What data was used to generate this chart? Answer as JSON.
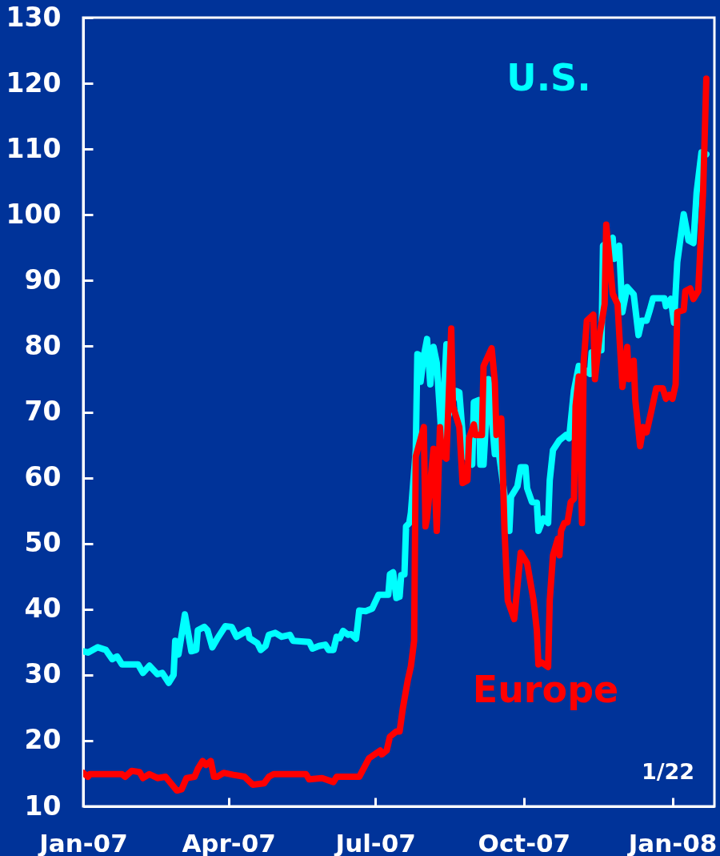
{
  "chart_data": {
    "type": "line",
    "annotations": [
      "1/22"
    ],
    "xlim": [
      "2007-01-01",
      "2008-01-27"
    ],
    "ylim": [
      10,
      130
    ],
    "xticks": [
      {
        "value": "2007-01-01",
        "label": "Jan-07"
      },
      {
        "value": "2007-04-01",
        "label": "Apr-07"
      },
      {
        "value": "2007-07-01",
        "label": "Jul-07"
      },
      {
        "value": "2007-10-01",
        "label": "Oct-07"
      },
      {
        "value": "2008-01-01",
        "label": "Jan-08"
      }
    ],
    "yticks": [
      10,
      20,
      30,
      40,
      50,
      60,
      70,
      80,
      90,
      100,
      110,
      120,
      130
    ],
    "series": [
      {
        "name": "U.S.",
        "color": "#00ffff",
        "x": [
          "2007-01-01",
          "2007-01-04",
          "2007-01-10",
          "2007-01-15",
          "2007-01-19",
          "2007-01-22",
          "2007-01-25",
          "2007-02-04",
          "2007-02-07",
          "2007-02-11",
          "2007-02-16",
          "2007-02-19",
          "2007-02-23",
          "2007-02-26",
          "2007-02-27",
          "2007-03-01",
          "2007-03-05",
          "2007-03-09",
          "2007-03-12",
          "2007-03-13",
          "2007-03-17",
          "2007-03-19",
          "2007-03-22",
          "2007-03-25",
          "2007-03-30",
          "2007-04-03",
          "2007-04-06",
          "2007-04-13",
          "2007-04-14",
          "2007-04-19",
          "2007-04-21",
          "2007-04-24",
          "2007-04-26",
          "2007-04-30",
          "2007-05-04",
          "2007-05-09",
          "2007-05-11",
          "2007-05-21",
          "2007-05-23",
          "2007-05-27",
          "2007-05-31",
          "2007-06-02",
          "2007-06-05",
          "2007-06-07",
          "2007-06-09",
          "2007-06-11",
          "2007-06-14",
          "2007-06-16",
          "2007-06-19",
          "2007-06-20",
          "2007-06-21",
          "2007-06-25",
          "2007-06-29",
          "2007-07-03",
          "2007-07-09",
          "2007-07-10",
          "2007-07-12",
          "2007-07-14",
          "2007-07-16",
          "2007-07-17",
          "2007-07-19",
          "2007-07-20",
          "2007-07-22",
          "2007-07-23",
          "2007-07-26",
          "2007-07-27",
          "2007-07-28",
          "2007-07-29",
          "2007-07-31",
          "2007-08-02",
          "2007-08-04",
          "2007-08-06",
          "2007-08-08",
          "2007-08-11",
          "2007-08-14",
          "2007-08-15",
          "2007-08-20",
          "2007-08-22",
          "2007-08-25",
          "2007-08-30",
          "2007-08-31",
          "2007-09-03",
          "2007-09-04",
          "2007-09-06",
          "2007-09-09",
          "2007-09-13",
          "2007-09-14",
          "2007-09-22",
          "2007-09-23",
          "2007-09-27",
          "2007-09-29",
          "2007-10-02",
          "2007-10-03",
          "2007-10-06",
          "2007-10-09",
          "2007-10-10",
          "2007-10-13",
          "2007-10-16",
          "2007-10-17",
          "2007-10-19",
          "2007-10-23",
          "2007-10-27",
          "2007-10-29",
          "2007-10-30",
          "2007-11-01",
          "2007-11-04",
          "2007-11-11",
          "2007-11-12",
          "2007-11-18",
          "2007-11-19",
          "2007-11-25",
          "2007-11-26",
          "2007-11-29",
          "2007-12-01",
          "2007-12-04",
          "2007-12-08",
          "2007-12-11",
          "2007-12-13",
          "2007-12-16",
          "2007-12-18",
          "2007-12-20",
          "2007-12-27",
          "2007-12-28",
          "2007-12-31",
          "2008-01-02",
          "2008-01-04",
          "2008-01-08",
          "2008-01-11",
          "2008-01-14",
          "2008-01-16",
          "2008-01-19",
          "2008-01-22"
        ],
        "values": [
          33.6,
          33.4,
          34.2,
          33.8,
          32.4,
          32.8,
          31.6,
          31.6,
          30.3,
          31.4,
          30.1,
          30.3,
          28.8,
          30.0,
          35.2,
          33.1,
          39.2,
          33.6,
          33.8,
          36.8,
          37.3,
          36.8,
          34.2,
          35.5,
          37.4,
          37.3,
          35.8,
          36.8,
          35.6,
          34.8,
          33.8,
          34.4,
          36.1,
          36.4,
          35.8,
          36.1,
          35.2,
          35.0,
          34.0,
          34.4,
          34.6,
          33.8,
          33.8,
          35.8,
          35.6,
          36.7,
          36.1,
          36.2,
          35.5,
          37.6,
          39.8,
          39.7,
          40.1,
          42.2,
          42.2,
          45.3,
          45.6,
          41.7,
          41.9,
          45.2,
          45.3,
          52.6,
          53.1,
          54.7,
          64.1,
          78.8,
          78.7,
          74.6,
          78.5,
          81.1,
          74.2,
          79.9,
          77.5,
          66.0,
          80.3,
          69.3,
          73.2,
          73.0,
          63.6,
          62.0,
          71.5,
          71.8,
          62.0,
          62.0,
          75.0,
          63.6,
          66.5,
          51.9,
          57.1,
          58.7,
          61.6,
          61.6,
          58.4,
          56.3,
          56.2,
          51.9,
          53.8,
          53.1,
          59.6,
          64.2,
          65.7,
          66.5,
          66.0,
          68.5,
          73.3,
          77.0,
          75.8,
          79.1,
          79.4,
          95.3,
          96.5,
          93.3,
          95.3,
          85.2,
          89.0,
          87.9,
          81.7,
          83.9,
          83.9,
          85.5,
          87.3,
          87.3,
          86.1,
          87.2,
          83.6,
          92.8,
          100.1,
          96.1,
          95.7,
          103.4,
          109.5,
          109.2
        ]
      },
      {
        "name": "Europe",
        "color": "#ff0000",
        "x": [
          "2007-01-01",
          "2007-01-04",
          "2007-01-05",
          "2007-01-25",
          "2007-01-27",
          "2007-01-31",
          "2007-02-05",
          "2007-02-07",
          "2007-02-11",
          "2007-02-16",
          "2007-02-21",
          "2007-02-28",
          "2007-03-03",
          "2007-03-06",
          "2007-03-11",
          "2007-03-13",
          "2007-03-16",
          "2007-03-18",
          "2007-03-21",
          "2007-03-23",
          "2007-03-25",
          "2007-03-29",
          "2007-04-04",
          "2007-04-11",
          "2007-04-16",
          "2007-04-23",
          "2007-04-26",
          "2007-04-29",
          "2007-05-19",
          "2007-05-21",
          "2007-05-29",
          "2007-06-05",
          "2007-06-07",
          "2007-06-21",
          "2007-06-27",
          "2007-07-04",
          "2007-07-05",
          "2007-07-08",
          "2007-07-10",
          "2007-07-14",
          "2007-07-16",
          "2007-07-18",
          "2007-07-21",
          "2007-07-23",
          "2007-07-25",
          "2007-07-26",
          "2007-07-31",
          "2007-08-01",
          "2007-08-02",
          "2007-08-06",
          "2007-08-08",
          "2007-08-10",
          "2007-08-11",
          "2007-08-14",
          "2007-08-17",
          "2007-08-18",
          "2007-08-22",
          "2007-08-24",
          "2007-08-27",
          "2007-08-28",
          "2007-08-31",
          "2007-09-01",
          "2007-09-05",
          "2007-09-06",
          "2007-09-11",
          "2007-09-13",
          "2007-09-14",
          "2007-09-17",
          "2007-09-19",
          "2007-09-21",
          "2007-09-25",
          "2007-09-29",
          "2007-10-03",
          "2007-10-07",
          "2007-10-09",
          "2007-10-10",
          "2007-10-12",
          "2007-10-16",
          "2007-10-17",
          "2007-10-19",
          "2007-10-22",
          "2007-10-23",
          "2007-10-24",
          "2007-10-26",
          "2007-10-28",
          "2007-10-30",
          "2007-11-01",
          "2007-11-02",
          "2007-11-04",
          "2007-11-06",
          "2007-11-07",
          "2007-11-09",
          "2007-11-13",
          "2007-11-14",
          "2007-11-17",
          "2007-11-20",
          "2007-11-21",
          "2007-11-25",
          "2007-11-28",
          "2007-12-01",
          "2007-12-04",
          "2007-12-05",
          "2007-12-08",
          "2007-12-09",
          "2007-12-12",
          "2007-12-14",
          "2007-12-16",
          "2007-12-19",
          "2007-12-22",
          "2007-12-26",
          "2007-12-28",
          "2007-12-30",
          "2008-01-01",
          "2008-01-03",
          "2008-01-04",
          "2008-01-08",
          "2008-01-09",
          "2008-01-12",
          "2008-01-14",
          "2008-01-17",
          "2008-01-20",
          "2008-01-22"
        ],
        "values": [
          15.1,
          14.5,
          14.9,
          14.9,
          14.5,
          15.4,
          15.2,
          14.3,
          14.9,
          14.3,
          14.5,
          12.4,
          12.6,
          14.3,
          14.5,
          15.7,
          16.9,
          16.3,
          16.9,
          14.5,
          14.5,
          15.1,
          14.8,
          14.5,
          13.3,
          13.5,
          14.5,
          14.9,
          14.9,
          14.1,
          14.3,
          13.7,
          14.5,
          14.5,
          17.3,
          18.5,
          17.9,
          18.5,
          20.6,
          21.4,
          21.4,
          24.9,
          29.1,
          31.3,
          35.2,
          63.2,
          67.7,
          52.6,
          53.8,
          64.4,
          51.9,
          67.7,
          63.6,
          62.9,
          82.7,
          70.9,
          67.7,
          59.2,
          59.6,
          66.0,
          68.1,
          66.5,
          66.5,
          77.0,
          79.7,
          74.6,
          66.5,
          69.0,
          51.9,
          41.3,
          38.5,
          48.6,
          47.0,
          41.3,
          36.8,
          31.6,
          31.9,
          31.2,
          41.3,
          48.2,
          50.7,
          48.2,
          51.9,
          53.1,
          53.2,
          56.3,
          56.8,
          70.9,
          75.4,
          53.1,
          77.5,
          83.9,
          84.8,
          75.0,
          81.9,
          86.4,
          98.5,
          88.0,
          86.4,
          73.8,
          79.9,
          75.0,
          77.8,
          71.8,
          64.8,
          67.7,
          66.9,
          70.2,
          73.6,
          73.6,
          72.0,
          72.6,
          72.0,
          74.2,
          85.2,
          85.5,
          88.4,
          88.8,
          87.2,
          88.4,
          103.4,
          120.7
        ]
      }
    ]
  }
}
